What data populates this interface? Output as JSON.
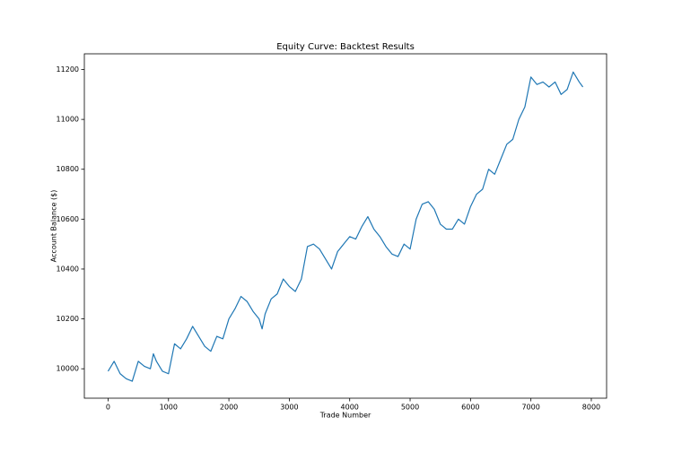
{
  "chart_data": {
    "type": "line",
    "title": "Equity Curve: Backtest Results",
    "xlabel": "Trade Number",
    "ylabel": "Account Balance ($)",
    "x": [
      0,
      100,
      200,
      300,
      400,
      500,
      600,
      700,
      750,
      800,
      900,
      1000,
      1100,
      1200,
      1300,
      1400,
      1500,
      1600,
      1700,
      1800,
      1900,
      2000,
      2100,
      2200,
      2300,
      2400,
      2500,
      2550,
      2600,
      2700,
      2800,
      2900,
      3000,
      3100,
      3200,
      3300,
      3400,
      3500,
      3600,
      3700,
      3800,
      3900,
      4000,
      4100,
      4200,
      4300,
      4400,
      4500,
      4600,
      4700,
      4800,
      4900,
      5000,
      5100,
      5200,
      5300,
      5400,
      5500,
      5600,
      5700,
      5800,
      5900,
      6000,
      6100,
      6200,
      6300,
      6400,
      6500,
      6600,
      6700,
      6800,
      6900,
      7000,
      7100,
      7200,
      7300,
      7400,
      7500,
      7600,
      7700,
      7800,
      7860
    ],
    "values": [
      9990,
      10030,
      9980,
      9960,
      9950,
      10030,
      10010,
      10000,
      10060,
      10030,
      9990,
      9980,
      10100,
      10080,
      10120,
      10170,
      10130,
      10090,
      10070,
      10130,
      10120,
      10200,
      10240,
      10290,
      10270,
      10230,
      10200,
      10160,
      10220,
      10280,
      10300,
      10360,
      10330,
      10310,
      10360,
      10490,
      10500,
      10480,
      10440,
      10400,
      10470,
      10500,
      10530,
      10520,
      10570,
      10610,
      10560,
      10530,
      10490,
      10460,
      10450,
      10500,
      10480,
      10600,
      10660,
      10670,
      10640,
      10580,
      10560,
      10560,
      10600,
      10580,
      10650,
      10700,
      10720,
      10800,
      10780,
      10840,
      10900,
      10920,
      11000,
      11050,
      11170,
      11140,
      11150,
      11130,
      11150,
      11100,
      11120,
      11190,
      11150,
      11130
    ],
    "color": "#1f77b4",
    "xlim": [
      -393,
      8253
    ],
    "xticks": [
      0,
      1000,
      2000,
      3000,
      4000,
      5000,
      6000,
      7000,
      8000
    ],
    "ylim": [
      9882,
      11263
    ],
    "yticks": [
      10000,
      10200,
      10400,
      10600,
      10800,
      11000,
      11200
    ]
  }
}
